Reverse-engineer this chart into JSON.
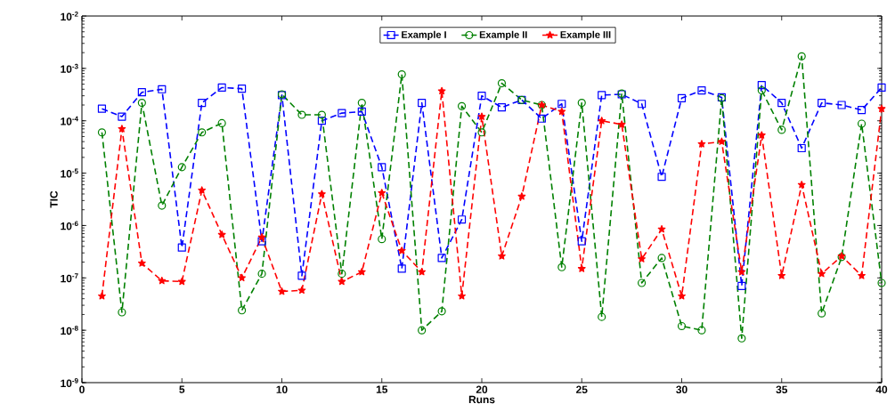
{
  "chart_data": {
    "type": "line",
    "xlabel": "Runs",
    "ylabel": "TIC",
    "log": "y",
    "x": [
      1,
      2,
      3,
      4,
      5,
      6,
      7,
      8,
      9,
      10,
      11,
      12,
      13,
      14,
      15,
      16,
      17,
      18,
      19,
      20,
      21,
      22,
      23,
      24,
      25,
      26,
      27,
      28,
      29,
      30,
      31,
      32,
      33,
      34,
      35,
      36,
      37,
      38,
      39,
      40
    ],
    "xlim": [
      0,
      40
    ],
    "xticks": [
      0,
      5,
      10,
      15,
      20,
      25,
      30,
      35,
      40
    ],
    "ylim": [
      1e-09,
      0.01
    ],
    "yticks": [
      {
        "value": 1e-09,
        "label": "10$^{-9}$"
      },
      {
        "value": 1e-08,
        "label": "10$^{-8}$"
      },
      {
        "value": 1e-07,
        "label": "10$^{-7}$"
      },
      {
        "value": 1e-06,
        "label": "10$^{-6}$"
      },
      {
        "value": 1e-05,
        "label": "10$^{-5}$"
      },
      {
        "value": 0.0001,
        "label": "10$^{-4}$"
      },
      {
        "value": 0.001,
        "label": "10$^{-3}$"
      },
      {
        "value": 0.01,
        "label": "10$^{-2}$"
      }
    ],
    "grid": false,
    "legend": "top",
    "line_style": "dashed",
    "series": [
      {
        "name": "Example I",
        "color": "#0000ff",
        "marker": "square",
        "values": [
          0.00017,
          0.00012,
          0.00035,
          0.0004,
          3.8e-07,
          0.00022,
          0.00043,
          0.00041,
          5e-07,
          0.00031,
          1.1e-07,
          0.0001,
          0.00014,
          0.00015,
          1.3e-05,
          1.5e-07,
          0.00022,
          2.4e-07,
          1.3e-06,
          0.0003,
          0.00018,
          0.00025,
          0.00011,
          0.00021,
          5e-07,
          0.00031,
          0.00032,
          0.00021,
          8.5e-06,
          0.00027,
          0.00038,
          0.00028,
          7e-08,
          0.00048,
          0.00022,
          3e-05,
          0.00022,
          0.0002,
          0.00016,
          0.00043
        ]
      },
      {
        "name": "Example II",
        "color": "#008000",
        "marker": "circle",
        "values": [
          6e-05,
          2.2e-08,
          0.00022,
          2.4e-06,
          1.3e-05,
          6e-05,
          9e-05,
          2.4e-08,
          1.2e-07,
          0.00032,
          0.00013,
          0.00013,
          1.2e-07,
          0.00022,
          5.5e-07,
          0.00077,
          1e-08,
          2.3e-08,
          0.00019,
          6e-05,
          0.00052,
          0.00025,
          0.0002,
          1.6e-07,
          0.00022,
          1.8e-08,
          0.00033,
          8e-08,
          2.4e-07,
          1.2e-08,
          1e-08,
          0.00027,
          7e-09,
          0.00038,
          6.7e-05,
          0.0017,
          2.1e-08,
          2.5e-07,
          8.8e-05,
          8e-08
        ]
      },
      {
        "name": "Example III",
        "color": "#ff0000",
        "marker": "star",
        "values": [
          4.5e-08,
          7e-05,
          1.9e-07,
          8.8e-08,
          8.5e-08,
          4.7e-06,
          6.7e-07,
          1e-07,
          6e-07,
          5.5e-08,
          5.8e-08,
          4e-06,
          8.5e-08,
          1.3e-07,
          4.2e-06,
          3.3e-07,
          1.3e-07,
          0.00037,
          4.5e-08,
          0.00012,
          2.6e-07,
          3.6e-06,
          0.0002,
          0.00015,
          1.5e-07,
          0.0001,
          8.5e-05,
          2.3e-07,
          8.5e-07,
          4.5e-08,
          3.6e-05,
          4e-05,
          1.3e-07,
          5.3e-05,
          1.1e-07,
          6e-06,
          1.2e-07,
          2.6e-07,
          1.1e-07,
          0.00017
        ]
      }
    ]
  }
}
